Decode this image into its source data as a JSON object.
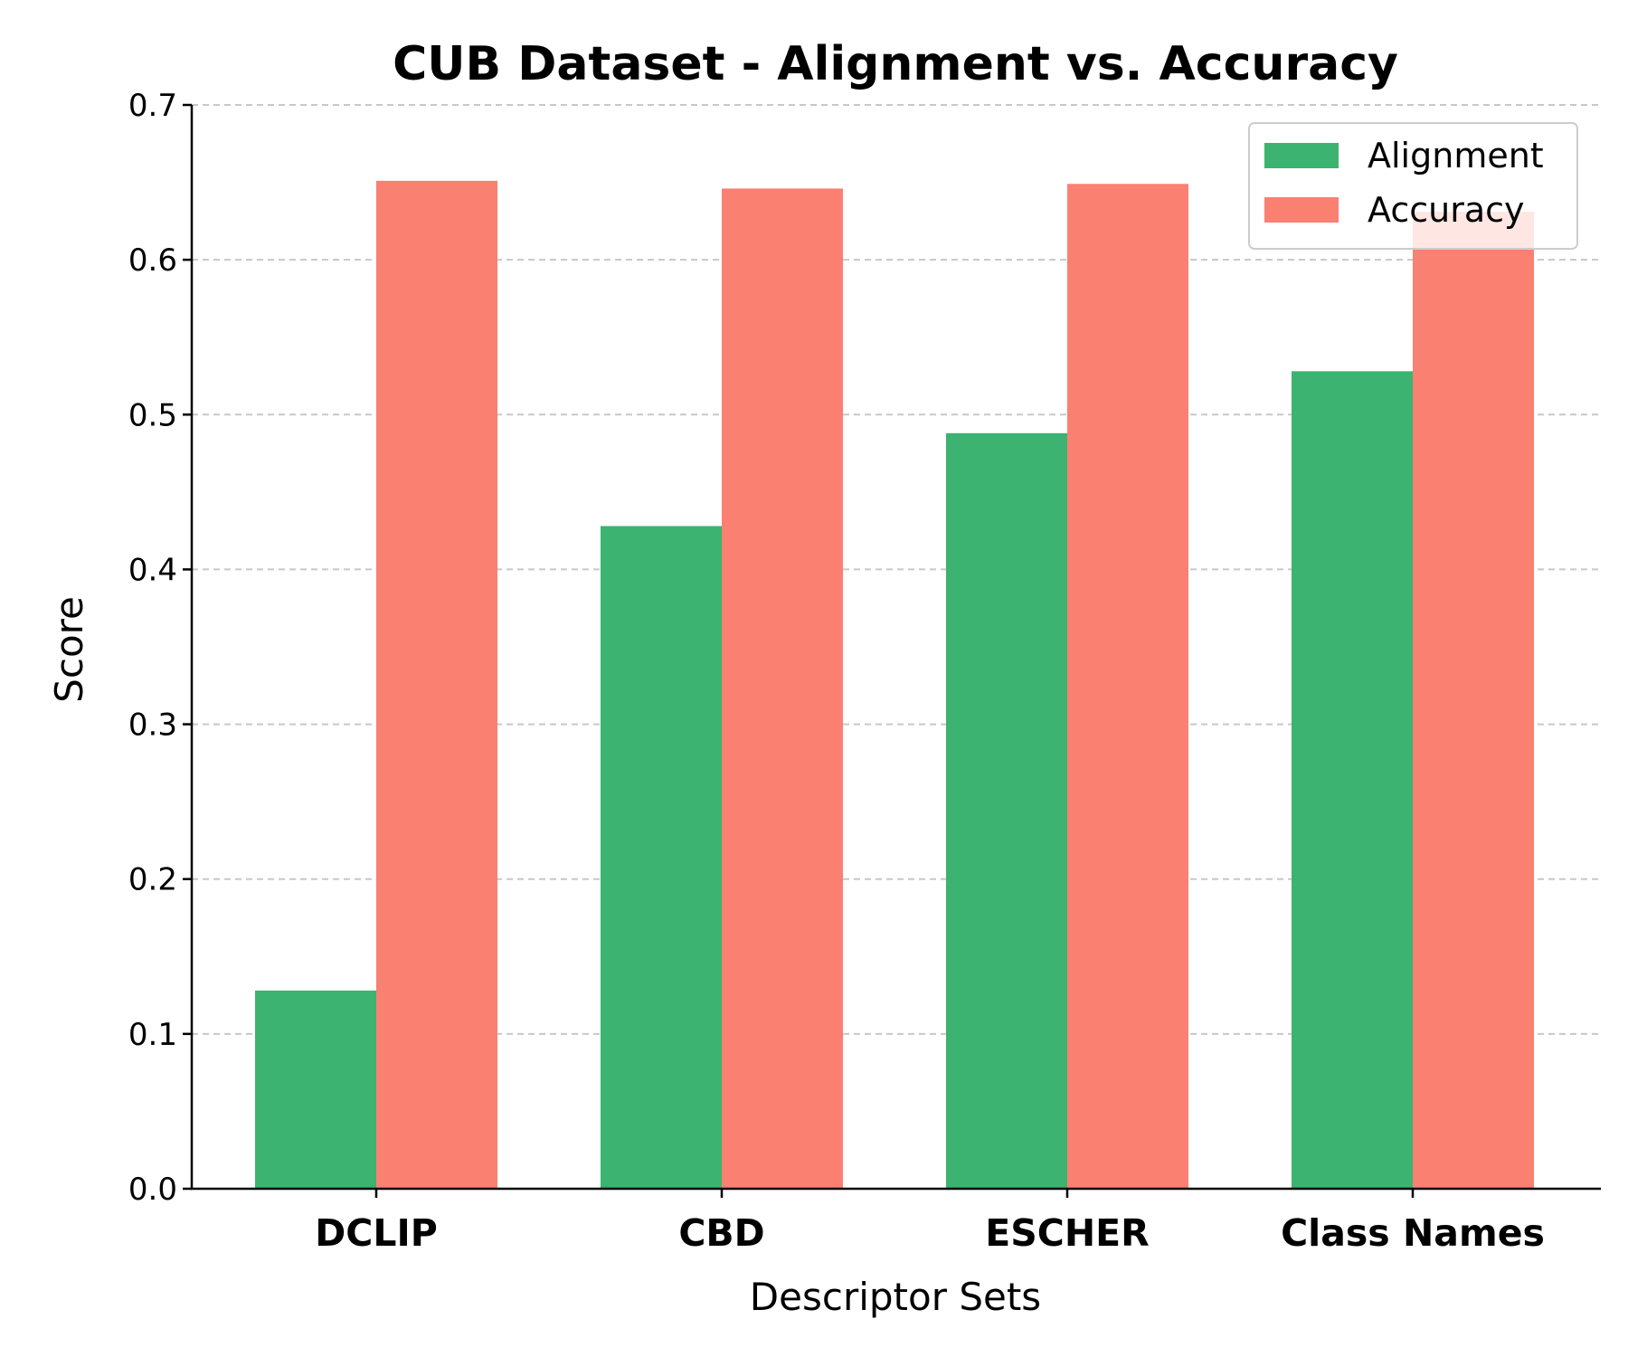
{
  "chart_data": {
    "type": "bar",
    "title": "CUB Dataset - Alignment vs. Accuracy",
    "xlabel": "Descriptor Sets",
    "ylabel": "Score",
    "categories": [
      "DCLIP",
      "CBD",
      "ESCHER",
      "Class Names"
    ],
    "series": [
      {
        "name": "Alignment",
        "color": "#3cb371",
        "values": [
          0.128,
          0.428,
          0.488,
          0.528
        ]
      },
      {
        "name": "Accuracy",
        "color": "#fa8072",
        "values": [
          0.651,
          0.646,
          0.649,
          0.631
        ]
      }
    ],
    "ylim": [
      0,
      0.7
    ],
    "yticks": [
      "0.0",
      "0.1",
      "0.2",
      "0.3",
      "0.4",
      "0.5",
      "0.6",
      "0.7"
    ],
    "grid": "y, dashed",
    "legend_position": "top-right"
  }
}
